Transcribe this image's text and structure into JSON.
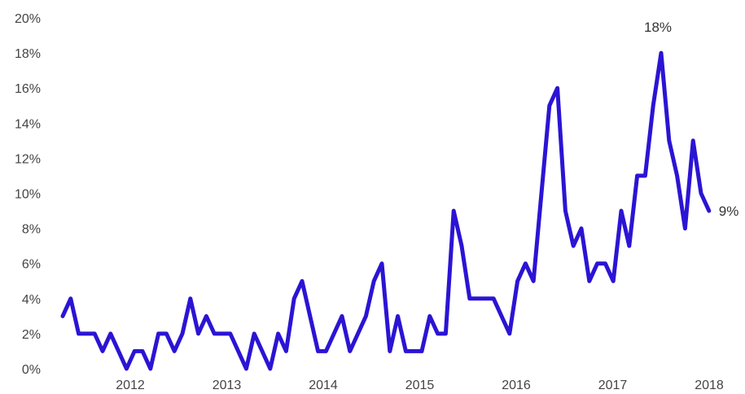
{
  "chart_data": {
    "type": "line",
    "title": "",
    "xlabel": "",
    "ylabel": "",
    "ylim": [
      0,
      20
    ],
    "y_ticks": [
      "0%",
      "2%",
      "4%",
      "6%",
      "8%",
      "10%",
      "12%",
      "14%",
      "16%",
      "18%",
      "20%"
    ],
    "x_ticks": [
      "2012",
      "2013",
      "2014",
      "2015",
      "2016",
      "2017",
      "2018"
    ],
    "grid": false,
    "legend": "none",
    "line_color": "#2b14d4",
    "series": [
      {
        "values": [
          3,
          4,
          2,
          2,
          2,
          1,
          2,
          1,
          0,
          1,
          1,
          0,
          2,
          2,
          1,
          2,
          4,
          2,
          3,
          2,
          2,
          2,
          1,
          0,
          2,
          1,
          0,
          2,
          1,
          4,
          5,
          3,
          1,
          1,
          2,
          3,
          1,
          2,
          3,
          5,
          6,
          1,
          3,
          1,
          1,
          1,
          3,
          2,
          2,
          9,
          7,
          4,
          4,
          4,
          4,
          3,
          2,
          5,
          6,
          5,
          10,
          15,
          16,
          9,
          7,
          8,
          5,
          6,
          6,
          5,
          9,
          7,
          11,
          11,
          15,
          18,
          13,
          11,
          8,
          13,
          10,
          9
        ]
      }
    ],
    "annotations": [
      {
        "text": "18%",
        "index": 75
      },
      {
        "text": "9%",
        "index": 81
      }
    ]
  }
}
